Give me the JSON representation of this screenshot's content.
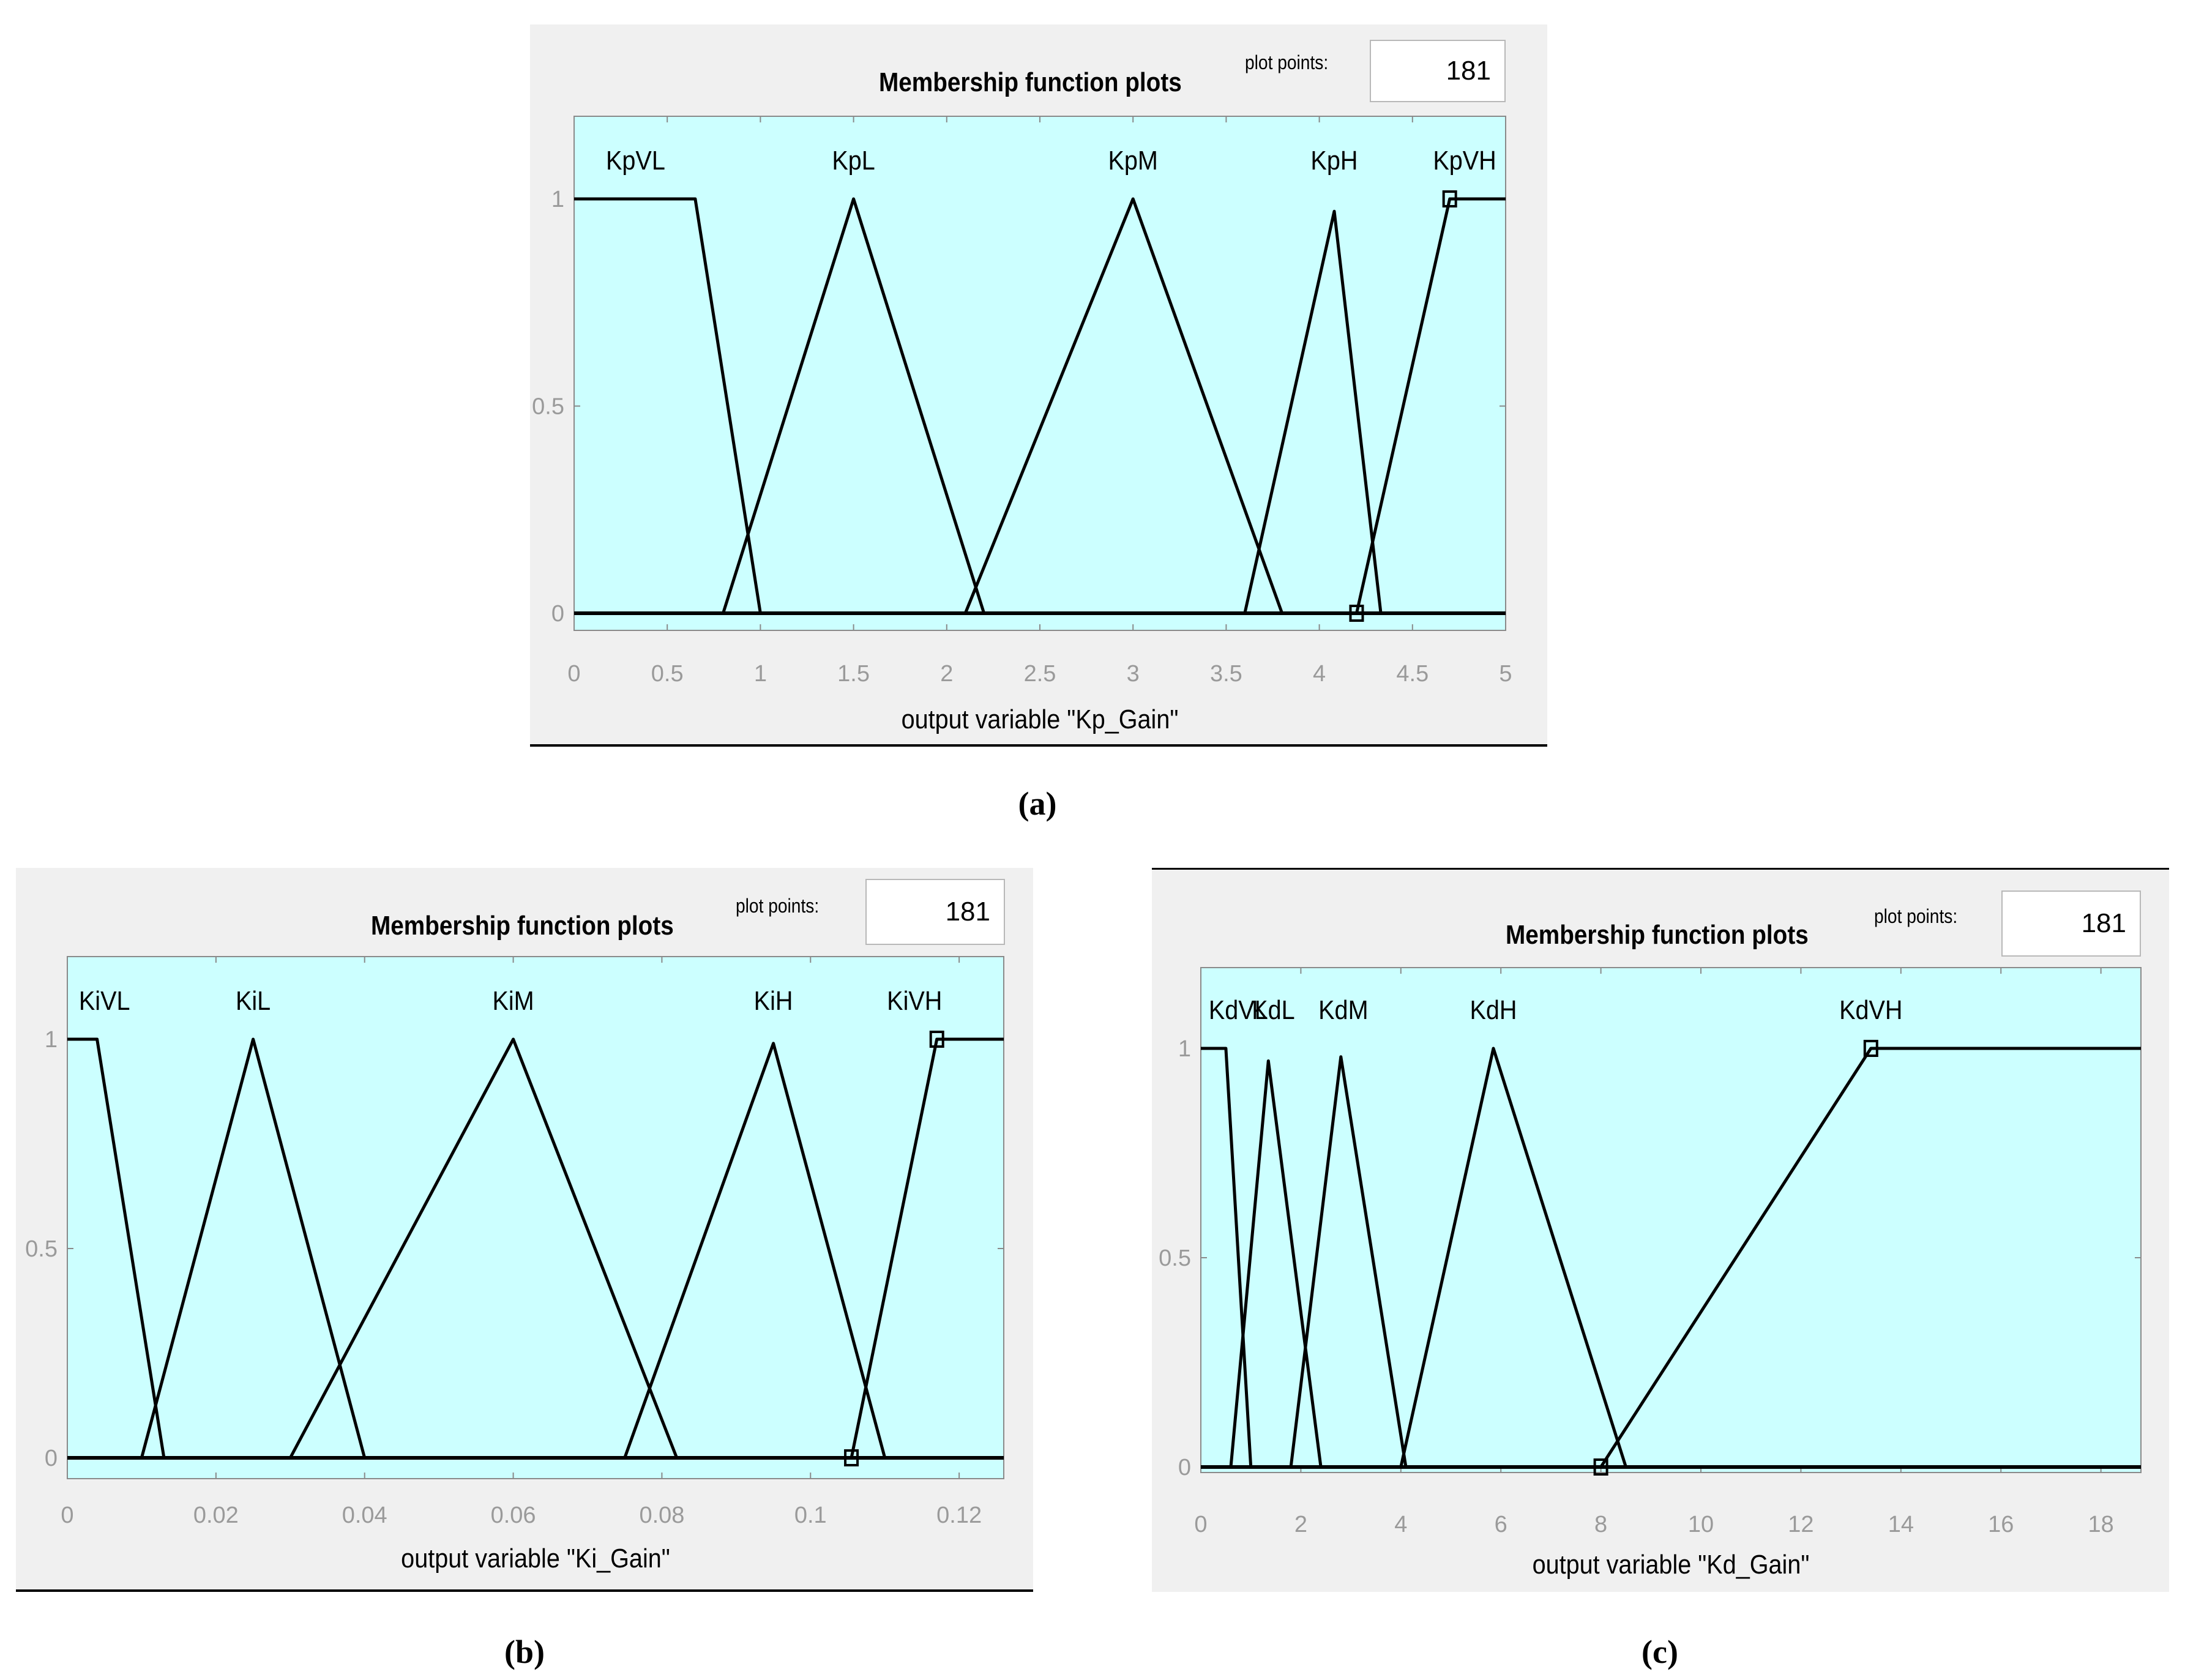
{
  "colors": {
    "axes_bg": "#ccffff",
    "panel_bg": "#f0f0f0",
    "line": "#000000",
    "tick_text": "#9a9a9a"
  },
  "panels": [
    {
      "caption": "(a)",
      "title": "Membership function plots",
      "plot_points_label": "plot points:",
      "plot_points_value": "181"
    },
    {
      "caption": "(b)",
      "title": "Membership function plots",
      "plot_points_label": "plot points:",
      "plot_points_value": "181"
    },
    {
      "caption": "(c)",
      "title": "Membership function plots",
      "plot_points_label": "plot points:",
      "plot_points_value": "181"
    }
  ],
  "chart_data": [
    {
      "type": "line",
      "xlabel": "output variable \"Kp_Gain\"",
      "xlim": [
        0,
        5
      ],
      "ylim": [
        0,
        1
      ],
      "xticks": [
        0,
        0.5,
        1,
        1.5,
        2,
        2.5,
        3,
        3.5,
        4,
        4.5,
        5
      ],
      "xtick_labels": [
        "0",
        "0.5",
        "1",
        "1.5",
        "2",
        "2.5",
        "3",
        "3.5",
        "4",
        "4.5",
        "5"
      ],
      "yticks": [
        0,
        0.5,
        1
      ],
      "ytick_labels": [
        "0",
        "0.5",
        "1"
      ],
      "series": [
        {
          "name": "KpVL",
          "x": [
            0,
            0.65,
            1.0
          ],
          "y": [
            1,
            1,
            0
          ]
        },
        {
          "name": "KpL",
          "x": [
            0.8,
            1.5,
            2.2
          ],
          "y": [
            0,
            1,
            0
          ]
        },
        {
          "name": "KpM",
          "x": [
            2.1,
            3.0,
            3.8
          ],
          "y": [
            0,
            1,
            0
          ]
        },
        {
          "name": "KpH",
          "x": [
            3.6,
            4.08,
            4.33
          ],
          "y": [
            0,
            0.97,
            0
          ]
        },
        {
          "name": "KpVH",
          "x": [
            4.2,
            4.7,
            5.0
          ],
          "y": [
            0,
            1,
            1
          ]
        }
      ],
      "label_positions": [
        0.33,
        1.5,
        3.0,
        4.08,
        4.78
      ],
      "handles": [
        {
          "x": 4.7,
          "y": 1
        },
        {
          "x": 4.2,
          "y": 0
        }
      ]
    },
    {
      "type": "line",
      "xlabel": "output variable \"Ki_Gain\"",
      "xlim": [
        0,
        0.126
      ],
      "ylim": [
        0,
        1
      ],
      "xticks": [
        0,
        0.02,
        0.04,
        0.06,
        0.08,
        0.1,
        0.12
      ],
      "xtick_labels": [
        "0",
        "0.02",
        "0.04",
        "0.06",
        "0.08",
        "0.1",
        "0.12"
      ],
      "yticks": [
        0,
        0.5,
        1
      ],
      "ytick_labels": [
        "0",
        "0.5",
        "1"
      ],
      "series": [
        {
          "name": "KiVL",
          "x": [
            0,
            0.004,
            0.013
          ],
          "y": [
            1,
            1,
            0
          ]
        },
        {
          "name": "KiL",
          "x": [
            0.01,
            0.025,
            0.04
          ],
          "y": [
            0,
            1,
            0
          ]
        },
        {
          "name": "KiM",
          "x": [
            0.03,
            0.06,
            0.082
          ],
          "y": [
            0,
            1,
            0
          ]
        },
        {
          "name": "KiH",
          "x": [
            0.075,
            0.095,
            0.11
          ],
          "y": [
            0,
            0.99,
            0
          ]
        },
        {
          "name": "KiVH",
          "x": [
            0.1055,
            0.117,
            0.126
          ],
          "y": [
            0,
            1,
            1
          ]
        }
      ],
      "label_positions": [
        0.005,
        0.025,
        0.06,
        0.095,
        0.114
      ],
      "handles": [
        {
          "x": 0.117,
          "y": 1
        },
        {
          "x": 0.1055,
          "y": 0
        }
      ]
    },
    {
      "type": "line",
      "xlabel": "output variable \"Kd_Gain\"",
      "xlim": [
        0,
        18.8
      ],
      "ylim": [
        0,
        1
      ],
      "xticks": [
        0,
        2,
        4,
        6,
        8,
        10,
        12,
        14,
        16,
        18
      ],
      "xtick_labels": [
        "0",
        "2",
        "4",
        "6",
        "8",
        "10",
        "12",
        "14",
        "16",
        "18"
      ],
      "yticks": [
        0,
        0.5,
        1
      ],
      "ytick_labels": [
        "0",
        "0.5",
        "1"
      ],
      "series": [
        {
          "name": "KdVL",
          "x": [
            0,
            0.5,
            1.0
          ],
          "y": [
            1,
            1,
            0
          ]
        },
        {
          "name": "KdL",
          "x": [
            0.6,
            1.35,
            2.4
          ],
          "y": [
            0,
            0.97,
            0
          ]
        },
        {
          "name": "KdM",
          "x": [
            1.8,
            2.8,
            4.1
          ],
          "y": [
            0,
            0.98,
            0
          ]
        },
        {
          "name": "KdH",
          "x": [
            4.0,
            5.85,
            8.5
          ],
          "y": [
            0,
            1,
            0
          ]
        },
        {
          "name": "KdVH",
          "x": [
            8.0,
            13.4,
            18.8
          ],
          "y": [
            0,
            1,
            1
          ]
        }
      ],
      "label_positions": [
        0.75,
        1.45,
        2.85,
        5.85,
        13.4
      ],
      "handles": [
        {
          "x": 13.4,
          "y": 1
        },
        {
          "x": 8.0,
          "y": 0
        }
      ]
    }
  ]
}
